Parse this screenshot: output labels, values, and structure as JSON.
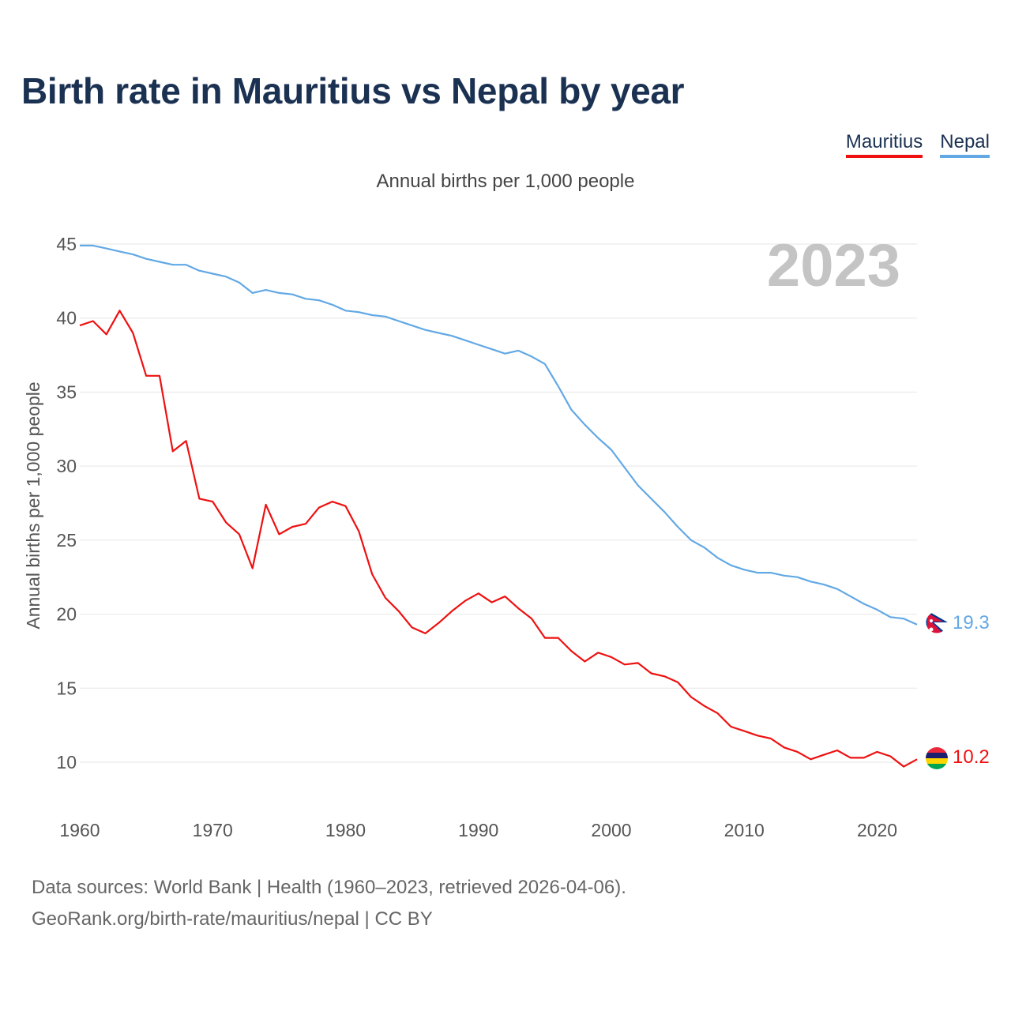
{
  "header": {
    "title": "Birth rate in Mauritius vs Nepal by year"
  },
  "legend": {
    "items": [
      "Mauritius",
      "Nepal"
    ]
  },
  "footer": {
    "line1": "Data sources: World Bank | Health (1960–2023, retrieved 2026-04-06).",
    "line2": "GeoRank.org/birth-rate/mauritius/nepal | CC BY"
  },
  "colors": {
    "mauritius": "#ef1010",
    "nepal": "#62a8e5",
    "grid": "#e6e6e6"
  },
  "chart_data": {
    "type": "line",
    "title": "Birth rate in Mauritius vs Nepal by year",
    "subtitle": "Annual births per 1,000 people",
    "xlabel": "",
    "ylabel": "Annual births per 1,000 people",
    "year_marker": "2023",
    "xlim": [
      1960,
      2023
    ],
    "ylim": [
      8,
      46
    ],
    "x_ticks": [
      1960,
      1970,
      1980,
      1990,
      2000,
      2010,
      2020
    ],
    "y_ticks": [
      10,
      15,
      20,
      25,
      30,
      35,
      40,
      45
    ],
    "grid": true,
    "legend_position": "top-right",
    "x": [
      1960,
      1961,
      1962,
      1963,
      1964,
      1965,
      1966,
      1967,
      1968,
      1969,
      1970,
      1971,
      1972,
      1973,
      1974,
      1975,
      1976,
      1977,
      1978,
      1979,
      1980,
      1981,
      1982,
      1983,
      1984,
      1985,
      1986,
      1987,
      1988,
      1989,
      1990,
      1991,
      1992,
      1993,
      1994,
      1995,
      1996,
      1997,
      1998,
      1999,
      2000,
      2001,
      2002,
      2003,
      2004,
      2005,
      2006,
      2007,
      2008,
      2009,
      2010,
      2011,
      2012,
      2013,
      2014,
      2015,
      2016,
      2017,
      2018,
      2019,
      2020,
      2021,
      2022,
      2023
    ],
    "series": [
      {
        "name": "Mauritius",
        "color": "#ef1010",
        "end_label": "10.2",
        "values": [
          39.5,
          39.8,
          38.9,
          40.5,
          39.0,
          36.1,
          36.1,
          31.0,
          31.7,
          27.8,
          27.6,
          26.2,
          25.4,
          23.1,
          27.4,
          25.4,
          25.9,
          26.1,
          27.2,
          27.6,
          27.3,
          25.6,
          22.7,
          21.1,
          20.2,
          19.1,
          18.7,
          19.4,
          20.2,
          20.9,
          21.4,
          20.8,
          21.2,
          20.4,
          19.7,
          18.4,
          18.4,
          17.5,
          16.8,
          17.4,
          17.1,
          16.6,
          16.7,
          16.0,
          15.8,
          15.4,
          14.4,
          13.8,
          13.3,
          12.4,
          12.1,
          11.8,
          11.6,
          11.0,
          10.7,
          10.2,
          10.5,
          10.8,
          10.3,
          10.3,
          10.7,
          10.4,
          9.7,
          10.2
        ]
      },
      {
        "name": "Nepal",
        "color": "#62a8e5",
        "end_label": "19.3",
        "values": [
          44.9,
          44.9,
          44.7,
          44.5,
          44.3,
          44.0,
          43.8,
          43.6,
          43.6,
          43.2,
          43.0,
          42.8,
          42.4,
          41.7,
          41.9,
          41.7,
          41.6,
          41.3,
          41.2,
          40.9,
          40.5,
          40.4,
          40.2,
          40.1,
          39.8,
          39.5,
          39.2,
          39.0,
          38.8,
          38.5,
          38.2,
          37.9,
          37.6,
          37.8,
          37.4,
          36.9,
          35.4,
          33.8,
          32.8,
          31.9,
          31.1,
          29.9,
          28.7,
          27.8,
          26.9,
          25.9,
          25.0,
          24.5,
          23.8,
          23.3,
          23.0,
          22.8,
          22.8,
          22.6,
          22.5,
          22.2,
          22.0,
          21.7,
          21.2,
          20.7,
          20.3,
          19.8,
          19.7,
          19.3
        ]
      }
    ]
  }
}
